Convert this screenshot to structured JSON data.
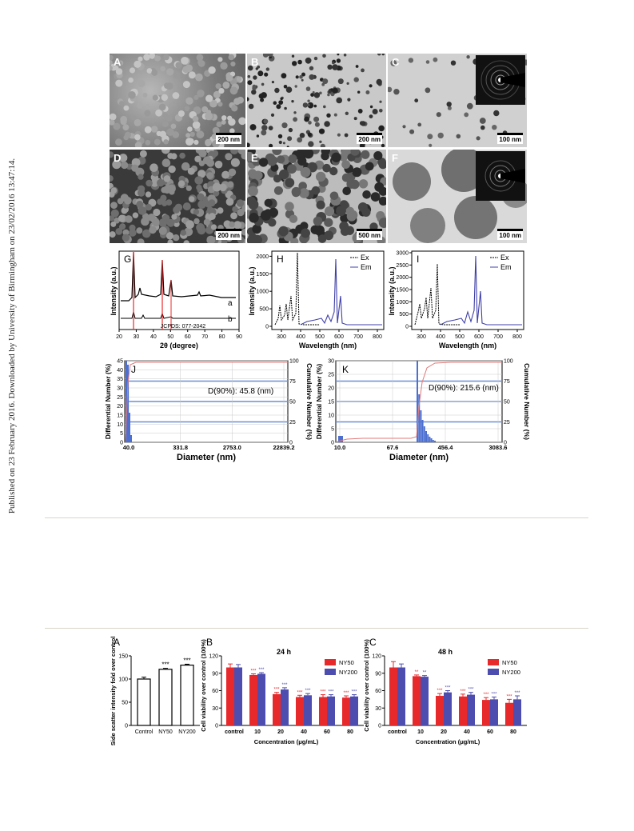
{
  "sidebar_text": "Published on 23 February 2016. Downloaded by University of Birmingham on 23/02/2016 13:47:14.",
  "micrographs": [
    {
      "letter": "A",
      "scale": "200 nm"
    },
    {
      "letter": "B",
      "scale": "200 nm"
    },
    {
      "letter": "C",
      "scale": "100 nm"
    },
    {
      "letter": "D",
      "scale": "200 nm"
    },
    {
      "letter": "E",
      "scale": "500 nm"
    },
    {
      "letter": "F",
      "scale": "100 nm"
    }
  ],
  "xrd": {
    "letter": "G",
    "ylabel": "Intensity (a.u.)",
    "xlabel": "2θ (degree)",
    "xticks": [
      "20",
      "30",
      "40",
      "50",
      "60",
      "70",
      "80",
      "90"
    ],
    "curve_labels": [
      "a",
      "b"
    ],
    "reference": "JCPDS: 077-2042"
  },
  "pl_h": {
    "letter": "H",
    "ylabel": "Intensity (a.u.)",
    "xlabel": "Wavelength (nm)",
    "xticks": [
      "300",
      "400",
      "500",
      "600",
      "700",
      "800"
    ],
    "yticks": [
      "0",
      "500",
      "1000",
      "1500",
      "2000"
    ],
    "legend": [
      "Ex",
      "Em"
    ]
  },
  "pl_i": {
    "letter": "I",
    "ylabel": "Intensity (a.u.)",
    "xlabel": "Wavelength (nm)",
    "xticks": [
      "300",
      "400",
      "500",
      "600",
      "700",
      "800"
    ],
    "yticks": [
      "0",
      "500",
      "1000",
      "1500",
      "2000",
      "2500",
      "3000"
    ],
    "legend": [
      "Ex",
      "Em"
    ]
  },
  "dls_j": {
    "letter": "J",
    "ylabel_left": "Differential Number (%)",
    "ylabel_right": "Cumulative Number (%)",
    "xlabel": "Diameter (nm)",
    "xticks": [
      "40.0",
      "331.8",
      "2753.0",
      "22839.2"
    ],
    "yticks_left": [
      "0",
      "5",
      "10",
      "15",
      "20",
      "25",
      "30",
      "35",
      "40",
      "45"
    ],
    "yticks_right": [
      "0",
      "25",
      "50",
      "75",
      "100"
    ],
    "annotation": "D(90%): 45.8 (nm)"
  },
  "dls_k": {
    "letter": "K",
    "ylabel_left": "Differential Number (%)",
    "ylabel_right": "Cumulative Number (%)",
    "xlabel": "Diameter (nm)",
    "xticks": [
      "10.0",
      "67.6",
      "456.4",
      "3083.6"
    ],
    "yticks_left": [
      "0",
      "5",
      "10",
      "15",
      "20",
      "25",
      "30"
    ],
    "yticks_right": [
      "0",
      "25",
      "50",
      "75",
      "100"
    ],
    "annotation": "D(90%): 215.6 (nm)"
  },
  "colors": {
    "ny50": "#e8292b",
    "ny200": "#4d4db0",
    "grid_blue": "#6b8fd6",
    "em": "#4040a8",
    "cum": "#e27a7a"
  },
  "chart_data": [
    {
      "type": "bar",
      "panel": "A",
      "ylabel": "Side scatter intensity fold over control (%)",
      "categories": [
        "Control",
        "NY50",
        "NY200"
      ],
      "values": [
        100,
        121,
        130
      ],
      "errors": [
        4,
        2,
        2
      ],
      "significance": [
        "",
        "***",
        "***"
      ],
      "ylim": [
        0,
        150
      ],
      "yticks": [
        "0",
        "50",
        "100",
        "150"
      ]
    },
    {
      "type": "bar",
      "panel": "B",
      "title": "24 h",
      "ylabel": "Cell viability over control (100%)",
      "xlabel": "Concentration (μg/mL)",
      "categories": [
        "control",
        "10",
        "20",
        "40",
        "60",
        "80"
      ],
      "series": [
        {
          "name": "NY50",
          "values": [
            100,
            87,
            54,
            49,
            49,
            48
          ],
          "errors": [
            6,
            2,
            3,
            3,
            4,
            3
          ],
          "significance": [
            "",
            "***",
            "***",
            "***",
            "***",
            "***"
          ]
        },
        {
          "name": "NY200",
          "values": [
            100,
            89,
            62,
            52,
            50,
            50
          ],
          "errors": [
            5,
            2,
            3,
            3,
            3,
            3
          ],
          "significance": [
            "",
            "***",
            "***",
            "***",
            "***",
            "***"
          ]
        }
      ],
      "ylim": [
        0,
        120
      ],
      "yticks": [
        "0",
        "30",
        "60",
        "90",
        "120"
      ]
    },
    {
      "type": "bar",
      "panel": "C",
      "title": "48 h",
      "ylabel": "Cell viability over control (100%)",
      "xlabel": "Concentration (μg/mL)",
      "categories": [
        "control",
        "10",
        "20",
        "40",
        "60",
        "80"
      ],
      "series": [
        {
          "name": "NY50",
          "values": [
            100,
            85,
            51,
            50,
            44,
            39
          ],
          "errors": [
            10,
            2,
            4,
            4,
            4,
            6
          ],
          "significance": [
            "",
            "**",
            "***",
            "***",
            "***",
            "***"
          ]
        },
        {
          "name": "NY200",
          "values": [
            100,
            84,
            57,
            53,
            45,
            45
          ],
          "errors": [
            6,
            2,
            3,
            4,
            4,
            6
          ],
          "significance": [
            "",
            "**",
            "***",
            "***",
            "***",
            "***"
          ]
        }
      ],
      "ylim": [
        0,
        120
      ],
      "yticks": [
        "0",
        "30",
        "60",
        "90",
        "120"
      ]
    }
  ]
}
